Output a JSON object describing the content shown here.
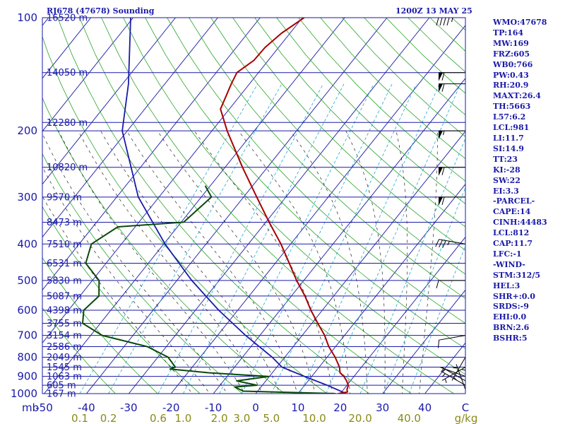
{
  "header": {
    "station": "RJ678 (47678) Sounding",
    "time": "1200Z 13 MAY 25"
  },
  "stats": [
    "WMO:47678",
    "TP:164",
    "MW:169",
    "FRZ:605",
    "WB0:766",
    "PW:0.43",
    "RH:20.9",
    "MAXT:26.4",
    "TH:5663",
    "L57:6.2",
    "LCL:981",
    "LI:11.7",
    "SI:14.9",
    "TT:23",
    "KI:-28",
    "SW:22",
    "EI:3.3",
    "-PARCEL-",
    "CAPE:14",
    "CINH:44483",
    "LCL:812",
    "CAP:11.7",
    "LFC:-1",
    "-WIND-",
    "STM:312/5",
    "HEL:3",
    "SHR+:0.0",
    "SRDS:-9",
    "EHI:0.0",
    "BRN:2.6",
    "BSHR:5"
  ],
  "colors": {
    "frame": "#1a1aa8",
    "isobar": "#1a1aa8",
    "isotherm": "#1a1aa8",
    "dry_adiabat": "#2aa52a",
    "moist_adiabat": "#000000",
    "mixing_ratio": "#22a8cc",
    "temperature": "#a80000",
    "dewpoint": "#0a4a0a",
    "parcel": "#1a1aa8",
    "axis_text": "#1a1aa8",
    "mixing_text": "#8a8a18",
    "wind": "#000000"
  },
  "chart_data": {
    "type": "line",
    "chart_kind": "skew-T log-P sounding",
    "x_axis": {
      "unit_label": "mb",
      "ticks": [
        "-50",
        "-40",
        "-30",
        "-20",
        "-10",
        "0",
        "10",
        "20",
        "30",
        "40",
        "C"
      ],
      "range": [
        -50,
        50
      ]
    },
    "y_axis": {
      "scale": "log",
      "range": [
        1000,
        100
      ],
      "ticks": [
        "100",
        "200",
        "300",
        "400",
        "500",
        "600",
        "700",
        "800",
        "900",
        "1000"
      ]
    },
    "mixing_ratio_axis": {
      "ticks": [
        "0.1",
        "0.2",
        "0.6",
        "1.0",
        "2.0",
        "3.0",
        "5.0",
        "10.0",
        "20.0",
        "40.0"
      ],
      "unit": "g/kg"
    },
    "height_labels": [
      {
        "p": 100,
        "label": "16520 m"
      },
      {
        "p": 140,
        "label": "14050 m"
      },
      {
        "p": 190,
        "label": "12280 m"
      },
      {
        "p": 250,
        "label": "10820 m"
      },
      {
        "p": 300,
        "label": "9570 m"
      },
      {
        "p": 350,
        "label": "8473 m"
      },
      {
        "p": 400,
        "label": "7510 m"
      },
      {
        "p": 450,
        "label": "6531 m"
      },
      {
        "p": 500,
        "label": "5830 m"
      },
      {
        "p": 550,
        "label": "5087 m"
      },
      {
        "p": 600,
        "label": "4398 m"
      },
      {
        "p": 650,
        "label": "3755 m"
      },
      {
        "p": 700,
        "label": "3154 m"
      },
      {
        "p": 750,
        "label": "2586 m"
      },
      {
        "p": 800,
        "label": "2049 m"
      },
      {
        "p": 850,
        "label": "1545 m"
      },
      {
        "p": 900,
        "label": "1063 m"
      },
      {
        "p": 950,
        "label": "605 m"
      },
      {
        "p": 1000,
        "label": "167 m"
      }
    ],
    "series": [
      {
        "id": "temperature",
        "points": [
          [
            1000,
            19.5
          ],
          [
            990,
            21.4
          ],
          [
            975,
            20.8
          ],
          [
            950,
            20.3
          ],
          [
            925,
            19.1
          ],
          [
            900,
            17.6
          ],
          [
            880,
            16.0
          ],
          [
            850,
            14.8
          ],
          [
            800,
            11.9
          ],
          [
            750,
            8.4
          ],
          [
            700,
            5.3
          ],
          [
            650,
            1.4
          ],
          [
            600,
            -2.7
          ],
          [
            550,
            -6.8
          ],
          [
            500,
            -11.7
          ],
          [
            450,
            -16.7
          ],
          [
            400,
            -22.3
          ],
          [
            350,
            -29.2
          ],
          [
            300,
            -36.9
          ],
          [
            250,
            -45.9
          ],
          [
            200,
            -56.4
          ],
          [
            175,
            -62.1
          ],
          [
            150,
            -64.3
          ],
          [
            140,
            -65.1
          ],
          [
            130,
            -63.4
          ],
          [
            120,
            -63.2
          ],
          [
            110,
            -62.0
          ],
          [
            100,
            -59.6
          ]
        ]
      },
      {
        "id": "dewpoint",
        "points": [
          [
            1000,
            18.9
          ],
          [
            985,
            -3.4
          ],
          [
            960,
            -6.2
          ],
          [
            950,
            -1.3
          ],
          [
            925,
            -6.9
          ],
          [
            900,
            -0.2
          ],
          [
            880,
            -15.1
          ],
          [
            860,
            -24.9
          ],
          [
            850,
            -24.0
          ],
          [
            800,
            -27.6
          ],
          [
            750,
            -34.5
          ],
          [
            700,
            -47.3
          ],
          [
            650,
            -54.2
          ],
          [
            600,
            -56.4
          ],
          [
            550,
            -55.5
          ],
          [
            500,
            -58.4
          ],
          [
            450,
            -64.8
          ],
          [
            400,
            -67.1
          ],
          [
            360,
            -64.1
          ],
          [
            350,
            -49.4
          ],
          [
            300,
            -47.6
          ],
          [
            280,
            -51.2
          ]
        ]
      },
      {
        "id": "parcel",
        "points": [
          [
            1000,
            21.4
          ],
          [
            950,
            15.3
          ],
          [
            900,
            8.3
          ],
          [
            850,
            1.2
          ],
          [
            800,
            -3.0
          ],
          [
            700,
            -13.4
          ],
          [
            600,
            -24.5
          ],
          [
            500,
            -36.5
          ],
          [
            400,
            -49.7
          ],
          [
            300,
            -64.9
          ],
          [
            200,
            -81.2
          ],
          [
            150,
            -88.6
          ],
          [
            100,
            -100.6
          ]
        ]
      }
    ],
    "wind_barbs": [
      {
        "p": 1000,
        "dir": 360,
        "kt": 5
      },
      {
        "p": 975,
        "dir": 340,
        "kt": 5
      },
      {
        "p": 950,
        "dir": 300,
        "kt": 5
      },
      {
        "p": 925,
        "dir": 300,
        "kt": 5
      },
      {
        "p": 900,
        "dir": 290,
        "kt": 5
      },
      {
        "p": 850,
        "dir": 240,
        "kt": 5
      },
      {
        "p": 800,
        "dir": 210,
        "kt": 5
      },
      {
        "p": 700,
        "dir": 260,
        "kt": 10
      },
      {
        "p": 500,
        "dir": 270,
        "kt": 10
      },
      {
        "p": 400,
        "dir": 280,
        "kt": 35
      },
      {
        "p": 300,
        "dir": 270,
        "kt": 60
      },
      {
        "p": 250,
        "dir": 270,
        "kt": 60
      },
      {
        "p": 200,
        "dir": 270,
        "kt": 55
      },
      {
        "p": 150,
        "dir": 270,
        "kt": 60
      },
      {
        "p": 140,
        "dir": 270,
        "kt": 60
      },
      {
        "p": 100,
        "dir": 270,
        "kt": 45
      }
    ]
  }
}
